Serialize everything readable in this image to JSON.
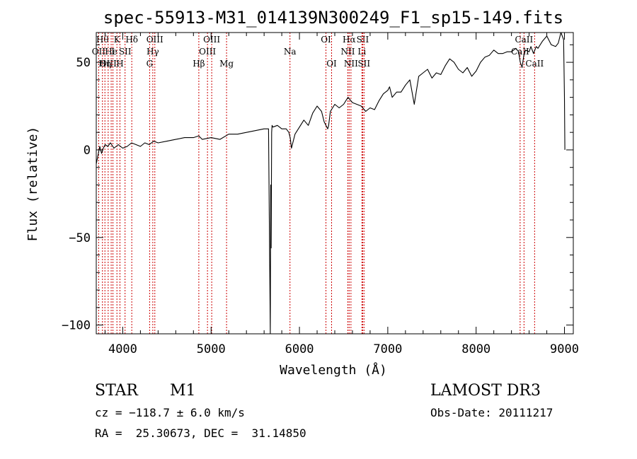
{
  "chart_data": {
    "type": "line",
    "title": "spec-55913-M31_014139N300249_F1_sp15-149.fits",
    "xlabel": "Wavelength (Å)",
    "ylabel": "Flux (relative)",
    "xlim": [
      3700,
      9100
    ],
    "ylim": [
      -105,
      67
    ],
    "x_ticks": [
      4000,
      5000,
      6000,
      7000,
      8000,
      9000
    ],
    "y_ticks": [
      -100,
      -50,
      0,
      50
    ],
    "series": [
      {
        "name": "spectrum",
        "color": "#000000",
        "x": [
          3700,
          3720,
          3740,
          3760,
          3780,
          3800,
          3830,
          3860,
          3900,
          3950,
          4000,
          4050,
          4100,
          4150,
          4200,
          4250,
          4300,
          4350,
          4400,
          4500,
          4600,
          4700,
          4800,
          4860,
          4900,
          5000,
          5100,
          5200,
          5300,
          5400,
          5500,
          5600,
          5650,
          5670,
          5675,
          5680,
          5685,
          5690,
          5700,
          5750,
          5800,
          5850,
          5880,
          5895,
          5910,
          5950,
          6000,
          6050,
          6100,
          6150,
          6200,
          6250,
          6280,
          6300,
          6320,
          6330,
          6350,
          6400,
          6450,
          6500,
          6550,
          6600,
          6650,
          6700,
          6750,
          6800,
          6850,
          6900,
          6950,
          7000,
          7020,
          7050,
          7100,
          7150,
          7200,
          7250,
          7300,
          7350,
          7400,
          7450,
          7500,
          7550,
          7600,
          7650,
          7700,
          7750,
          7800,
          7850,
          7900,
          7950,
          8000,
          8050,
          8100,
          8150,
          8200,
          8250,
          8300,
          8350,
          8400,
          8450,
          8480,
          8500,
          8520,
          8540,
          8560,
          8600,
          8620,
          8650,
          8680,
          8700,
          8750,
          8800,
          8850,
          8900,
          8930,
          8960,
          8990,
          9000,
          9005
        ],
        "values": [
          -8,
          -3,
          2,
          -2,
          1,
          3,
          2,
          4,
          1,
          3,
          1,
          2,
          4,
          3,
          2,
          4,
          3,
          5,
          4,
          5,
          6,
          7,
          7,
          8,
          6,
          7,
          6,
          9,
          9,
          10,
          11,
          12,
          12,
          -105,
          -20,
          -56,
          10,
          14,
          13,
          14,
          12,
          12,
          10,
          7,
          1,
          9,
          13,
          17,
          14,
          21,
          25,
          22,
          16,
          14,
          12,
          14,
          22,
          26,
          24,
          26,
          30,
          27,
          26,
          25,
          22,
          24,
          23,
          28,
          32,
          34,
          36,
          30,
          33,
          33,
          37,
          40,
          26,
          42,
          44,
          46,
          41,
          44,
          43,
          48,
          52,
          50,
          46,
          44,
          47,
          42,
          45,
          50,
          53,
          54,
          57,
          55,
          55,
          56,
          56,
          58,
          56,
          50,
          47,
          54,
          57,
          56,
          59,
          55,
          59,
          58,
          62,
          65,
          60,
          59,
          61,
          67,
          63,
          30,
          0
        ]
      }
    ],
    "line_annotations": [
      {
        "x": 3727,
        "label": "OII",
        "row": 2
      },
      {
        "x": 3770,
        "label": "Hθ",
        "row": 1
      },
      {
        "x": 3798,
        "label": "Hη",
        "row": 3
      },
      {
        "x": 3835,
        "label": "OIII",
        "row": 3
      },
      {
        "x": 3869,
        "label": "He",
        "row": 2
      },
      {
        "x": 3889,
        "label": "I",
        "row": 2
      },
      {
        "x": 3934,
        "label": "K",
        "row": 1
      },
      {
        "x": 3968,
        "label": "H",
        "row": 3
      },
      {
        "x": 4026,
        "label": "SII",
        "row": 2
      },
      {
        "x": 4102,
        "label": "Hδ",
        "row": 1
      },
      {
        "x": 4304,
        "label": "G",
        "row": 3
      },
      {
        "x": 4340,
        "label": "Hγ",
        "row": 2
      },
      {
        "x": 4363,
        "label": "OIII",
        "row": 1
      },
      {
        "x": 4861,
        "label": "Hβ",
        "row": 3
      },
      {
        "x": 4959,
        "label": "OIII",
        "row": 2
      },
      {
        "x": 5007,
        "label": "OIII",
        "row": 1
      },
      {
        "x": 5175,
        "label": "Mg",
        "row": 3
      },
      {
        "x": 5893,
        "label": "Na",
        "row": 2
      },
      {
        "x": 6300,
        "label": "OI",
        "row": 1
      },
      {
        "x": 6364,
        "label": "OI",
        "row": 3
      },
      {
        "x": 6548,
        "label": "NII",
        "row": 2
      },
      {
        "x": 6563,
        "label": "Hα",
        "row": 1
      },
      {
        "x": 6583,
        "label": "NII",
        "row": 3
      },
      {
        "x": 6707,
        "label": "Li",
        "row": 2
      },
      {
        "x": 6716,
        "label": "SII",
        "row": 1
      },
      {
        "x": 6731,
        "label": "SII",
        "row": 3
      },
      {
        "x": 8498,
        "label": "CaII",
        "row": 2
      },
      {
        "x": 8542,
        "label": "CaII",
        "row": 1
      },
      {
        "x": 8662,
        "label": "CaII",
        "row": 3
      }
    ]
  },
  "info": {
    "object_class": "STAR",
    "subclass": "M1",
    "survey": "LAMOST DR3",
    "cz": "cz = −118.7 ± 6.0 km/s",
    "obs_date": "Obs-Date: 20111217",
    "coords": "RA =  25.30673, DEC =  31.14850"
  }
}
